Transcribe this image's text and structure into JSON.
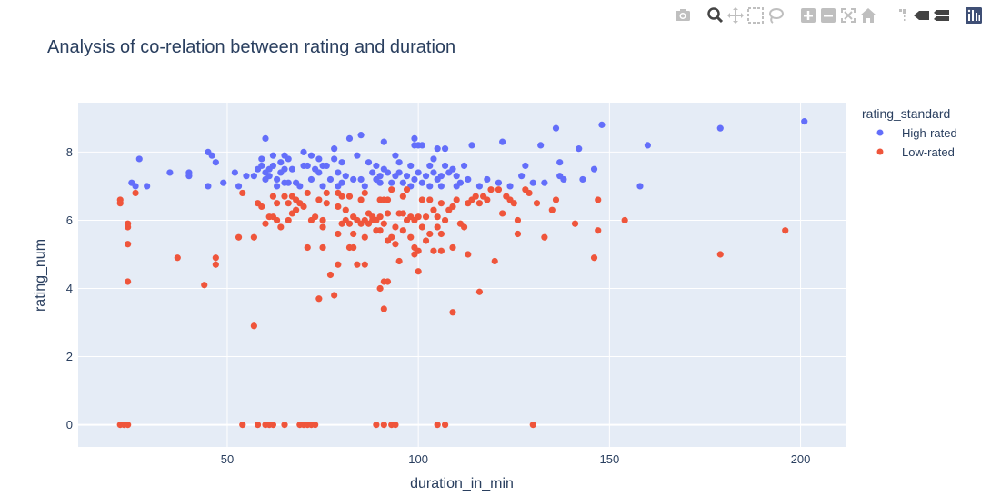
{
  "modebar": {
    "buttons": [
      {
        "name": "camera-icon",
        "group": 0
      },
      {
        "name": "zoom-icon",
        "group": 1,
        "active": true
      },
      {
        "name": "pan-icon",
        "group": 1
      },
      {
        "name": "box-select-icon",
        "group": 1
      },
      {
        "name": "lasso-select-icon",
        "group": 1
      },
      {
        "name": "zoom-in-icon",
        "group": 2
      },
      {
        "name": "zoom-out-icon",
        "group": 2
      },
      {
        "name": "autoscale-icon",
        "group": 2
      },
      {
        "name": "reset-axes-icon",
        "group": 2
      },
      {
        "name": "spike-lines-icon",
        "group": 3
      },
      {
        "name": "hover-closest-icon",
        "group": 3
      },
      {
        "name": "hover-compare-icon",
        "group": 3
      },
      {
        "name": "plotly-logo-icon",
        "group": 4
      }
    ]
  },
  "colors": {
    "plot_bg": "#e5ecf6",
    "grid": "#ffffff",
    "text": "#2a3f5f",
    "high_rated": "#636efa",
    "low_rated": "#ef553b",
    "modebar_icon": "#bfbfbf"
  },
  "chart_data": {
    "type": "scatter",
    "title": "Analysis of co-relation between rating and duration",
    "xlabel": "duration_in_min",
    "ylabel": "rating_num",
    "xlim": [
      11,
      212
    ],
    "ylim": [
      -0.65,
      9.45
    ],
    "xticks": [
      50,
      100,
      150,
      200
    ],
    "yticks": [
      0,
      2,
      4,
      6,
      8
    ],
    "legend": {
      "title": "rating_standard",
      "position": "right"
    },
    "grid": true,
    "series": [
      {
        "name": "High-rated",
        "color": "#636efa",
        "points": [
          [
            25,
            7.1
          ],
          [
            26,
            7.0
          ],
          [
            27,
            7.8
          ],
          [
            29,
            7.0
          ],
          [
            35,
            7.4
          ],
          [
            40,
            7.4
          ],
          [
            40,
            7.3
          ],
          [
            45,
            8.0
          ],
          [
            46,
            7.9
          ],
          [
            47,
            7.7
          ],
          [
            45,
            7.0
          ],
          [
            49,
            7.1
          ],
          [
            52,
            7.4
          ],
          [
            53,
            7.0
          ],
          [
            55,
            7.3
          ],
          [
            57,
            7.3
          ],
          [
            58,
            7.5
          ],
          [
            59,
            7.6
          ],
          [
            59,
            7.8
          ],
          [
            60,
            8.4
          ],
          [
            60,
            7.4
          ],
          [
            60,
            7.2
          ],
          [
            61,
            7.5
          ],
          [
            61,
            7.3
          ],
          [
            62,
            7.9
          ],
          [
            62,
            7.6
          ],
          [
            63,
            7.2
          ],
          [
            63,
            7.0
          ],
          [
            64,
            7.7
          ],
          [
            64,
            7.4
          ],
          [
            65,
            7.9
          ],
          [
            65,
            7.5
          ],
          [
            65,
            7.1
          ],
          [
            66,
            7.8
          ],
          [
            66,
            7.1
          ],
          [
            67,
            7.5
          ],
          [
            68,
            7.1
          ],
          [
            69,
            7.0
          ],
          [
            70,
            7.6
          ],
          [
            70,
            8.0
          ],
          [
            71,
            7.6
          ],
          [
            72,
            7.2
          ],
          [
            72,
            7.9
          ],
          [
            73,
            7.5
          ],
          [
            74,
            7.8
          ],
          [
            74,
            7.4
          ],
          [
            75,
            7.0
          ],
          [
            75,
            7.6
          ],
          [
            76,
            7.6
          ],
          [
            77,
            7.2
          ],
          [
            78,
            8.1
          ],
          [
            78,
            7.8
          ],
          [
            79,
            7.0
          ],
          [
            79,
            7.4
          ],
          [
            80,
            7.7
          ],
          [
            80,
            7.1
          ],
          [
            81,
            7.3
          ],
          [
            82,
            8.4
          ],
          [
            83,
            7.2
          ],
          [
            84,
            7.9
          ],
          [
            85,
            8.5
          ],
          [
            85,
            7.2
          ],
          [
            86,
            7.0
          ],
          [
            87,
            7.7
          ],
          [
            88,
            7.4
          ],
          [
            89,
            7.2
          ],
          [
            89,
            7.6
          ],
          [
            90,
            7.3
          ],
          [
            90,
            7.1
          ],
          [
            91,
            8.3
          ],
          [
            91,
            7.5
          ],
          [
            92,
            7.4
          ],
          [
            93,
            7.1
          ],
          [
            94,
            7.9
          ],
          [
            94,
            7.3
          ],
          [
            95,
            7.7
          ],
          [
            95,
            7.4
          ],
          [
            96,
            7.1
          ],
          [
            97,
            7.3
          ],
          [
            98,
            7.6
          ],
          [
            98,
            7.0
          ],
          [
            99,
            8.2
          ],
          [
            99,
            8.4
          ],
          [
            99,
            7.2
          ],
          [
            100,
            8.2
          ],
          [
            100,
            7.4
          ],
          [
            101,
            8.2
          ],
          [
            101,
            7.1
          ],
          [
            102,
            7.3
          ],
          [
            103,
            7.0
          ],
          [
            103,
            7.6
          ],
          [
            104,
            7.4
          ],
          [
            104,
            7.8
          ],
          [
            105,
            7.2
          ],
          [
            105,
            8.1
          ],
          [
            106,
            7.0
          ],
          [
            106,
            7.3
          ],
          [
            107,
            7.6
          ],
          [
            107,
            8.1
          ],
          [
            108,
            7.4
          ],
          [
            109,
            7.5
          ],
          [
            110,
            7.0
          ],
          [
            110,
            7.3
          ],
          [
            111,
            7.1
          ],
          [
            112,
            7.6
          ],
          [
            113,
            7.2
          ],
          [
            114,
            8.2
          ],
          [
            116,
            7.0
          ],
          [
            118,
            7.2
          ],
          [
            121,
            7.1
          ],
          [
            122,
            8.3
          ],
          [
            124,
            7.0
          ],
          [
            127,
            7.3
          ],
          [
            128,
            7.6
          ],
          [
            130,
            7.1
          ],
          [
            132,
            8.2
          ],
          [
            133,
            7.1
          ],
          [
            136,
            8.7
          ],
          [
            137,
            7.7
          ],
          [
            137,
            7.3
          ],
          [
            138,
            7.2
          ],
          [
            142,
            8.1
          ],
          [
            143,
            7.2
          ],
          [
            146,
            7.5
          ],
          [
            148,
            8.8
          ],
          [
            158,
            7.0
          ],
          [
            160,
            8.2
          ],
          [
            179,
            8.7
          ],
          [
            201,
            8.9
          ]
        ]
      },
      {
        "name": "Low-rated",
        "color": "#ef553b",
        "points": [
          [
            22,
            6.6
          ],
          [
            22,
            6.5
          ],
          [
            22,
            0
          ],
          [
            23,
            0
          ],
          [
            24,
            0
          ],
          [
            24,
            5.8
          ],
          [
            24,
            5.9
          ],
          [
            24,
            5.3
          ],
          [
            24,
            4.2
          ],
          [
            26,
            6.8
          ],
          [
            37,
            4.9
          ],
          [
            44,
            4.1
          ],
          [
            47,
            4.9
          ],
          [
            47,
            4.7
          ],
          [
            53,
            5.5
          ],
          [
            54,
            6.8
          ],
          [
            54,
            0
          ],
          [
            57,
            5.5
          ],
          [
            57,
            2.9
          ],
          [
            58,
            6.5
          ],
          [
            58,
            0
          ],
          [
            59,
            6.4
          ],
          [
            60,
            0
          ],
          [
            60,
            5.9
          ],
          [
            61,
            0
          ],
          [
            61,
            6.1
          ],
          [
            62,
            0
          ],
          [
            62,
            6.1
          ],
          [
            62,
            6.7
          ],
          [
            63,
            6.0
          ],
          [
            63,
            6.5
          ],
          [
            64,
            5.8
          ],
          [
            65,
            6.7
          ],
          [
            65,
            0
          ],
          [
            66,
            6.0
          ],
          [
            66,
            6.5
          ],
          [
            67,
            6.2
          ],
          [
            67,
            6.7
          ],
          [
            68,
            6.6
          ],
          [
            68,
            6.3
          ],
          [
            69,
            6.5
          ],
          [
            69,
            0
          ],
          [
            70,
            6.4
          ],
          [
            70,
            0
          ],
          [
            71,
            5.2
          ],
          [
            71,
            6.8
          ],
          [
            71,
            0
          ],
          [
            72,
            6.0
          ],
          [
            72,
            0
          ],
          [
            73,
            0
          ],
          [
            73,
            6.1
          ],
          [
            74,
            6.6
          ],
          [
            74,
            3.7
          ],
          [
            75,
            6.0
          ],
          [
            75,
            5.8
          ],
          [
            75,
            5.2
          ],
          [
            76,
            6.8
          ],
          [
            76,
            6.5
          ],
          [
            77,
            4.4
          ],
          [
            78,
            3.8
          ],
          [
            79,
            6.8
          ],
          [
            79,
            6.4
          ],
          [
            79,
            5.6
          ],
          [
            79,
            4.7
          ],
          [
            80,
            6.7
          ],
          [
            80,
            5.9
          ],
          [
            81,
            6.3
          ],
          [
            81,
            6.0
          ],
          [
            82,
            5.9
          ],
          [
            82,
            5.2
          ],
          [
            82,
            6.7
          ],
          [
            83,
            6.1
          ],
          [
            83,
            5.2
          ],
          [
            83,
            5.6
          ],
          [
            84,
            4.7
          ],
          [
            84,
            6.0
          ],
          [
            85,
            5.9
          ],
          [
            85,
            6.6
          ],
          [
            86,
            6.0
          ],
          [
            86,
            6.8
          ],
          [
            86,
            5.5
          ],
          [
            86,
            4.7
          ],
          [
            87,
            5.9
          ],
          [
            87,
            6.2
          ],
          [
            88,
            6.0
          ],
          [
            88,
            6.1
          ],
          [
            89,
            5.7
          ],
          [
            89,
            6.0
          ],
          [
            89,
            0
          ],
          [
            90,
            6.1
          ],
          [
            90,
            6.6
          ],
          [
            90,
            5.7
          ],
          [
            90,
            4.0
          ],
          [
            91,
            6.6
          ],
          [
            91,
            5.9
          ],
          [
            91,
            4.2
          ],
          [
            91,
            3.4
          ],
          [
            91,
            0
          ],
          [
            92,
            6.2
          ],
          [
            92,
            5.4
          ],
          [
            92,
            6.6
          ],
          [
            92,
            4.2
          ],
          [
            93,
            6.9
          ],
          [
            93,
            5.5
          ],
          [
            93,
            0
          ],
          [
            94,
            5.8
          ],
          [
            94,
            5.3
          ],
          [
            94,
            0
          ],
          [
            95,
            6.2
          ],
          [
            95,
            4.8
          ],
          [
            96,
            6.7
          ],
          [
            96,
            6.2
          ],
          [
            96,
            5.7
          ],
          [
            97,
            6.9
          ],
          [
            97,
            6.0
          ],
          [
            98,
            6.1
          ],
          [
            98,
            5.5
          ],
          [
            99,
            5.2
          ],
          [
            99,
            6.0
          ],
          [
            99,
            5.0
          ],
          [
            100,
            6.1
          ],
          [
            100,
            5.1
          ],
          [
            100,
            4.5
          ],
          [
            101,
            6.6
          ],
          [
            101,
            5.8
          ],
          [
            102,
            6.1
          ],
          [
            102,
            5.4
          ],
          [
            103,
            6.6
          ],
          [
            103,
            5.6
          ],
          [
            104,
            6.3
          ],
          [
            104,
            5.1
          ],
          [
            105,
            6.1
          ],
          [
            105,
            5.8
          ],
          [
            105,
            0
          ],
          [
            106,
            6.5
          ],
          [
            106,
            5.6
          ],
          [
            106,
            5.1
          ],
          [
            107,
            6.0
          ],
          [
            107,
            0
          ],
          [
            108,
            6.3
          ],
          [
            109,
            6.4
          ],
          [
            109,
            5.2
          ],
          [
            109,
            3.3
          ],
          [
            110,
            6.6
          ],
          [
            111,
            5.9
          ],
          [
            112,
            5.8
          ],
          [
            113,
            6.5
          ],
          [
            113,
            5.0
          ],
          [
            114,
            6.6
          ],
          [
            115,
            6.7
          ],
          [
            116,
            3.9
          ],
          [
            116,
            6.5
          ],
          [
            117,
            6.7
          ],
          [
            118,
            6.6
          ],
          [
            119,
            6.9
          ],
          [
            120,
            4.8
          ],
          [
            121,
            6.9
          ],
          [
            122,
            6.2
          ],
          [
            123,
            6.7
          ],
          [
            124,
            6.6
          ],
          [
            125,
            6.5
          ],
          [
            126,
            6.0
          ],
          [
            126,
            5.6
          ],
          [
            128,
            6.9
          ],
          [
            129,
            6.8
          ],
          [
            130,
            0
          ],
          [
            131,
            6.5
          ],
          [
            133,
            5.5
          ],
          [
            135,
            6.3
          ],
          [
            136,
            6.6
          ],
          [
            141,
            5.9
          ],
          [
            146,
            4.9
          ],
          [
            147,
            6.6
          ],
          [
            147,
            5.7
          ],
          [
            154,
            6.0
          ],
          [
            179,
            5.0
          ],
          [
            196,
            5.7
          ]
        ]
      }
    ]
  }
}
